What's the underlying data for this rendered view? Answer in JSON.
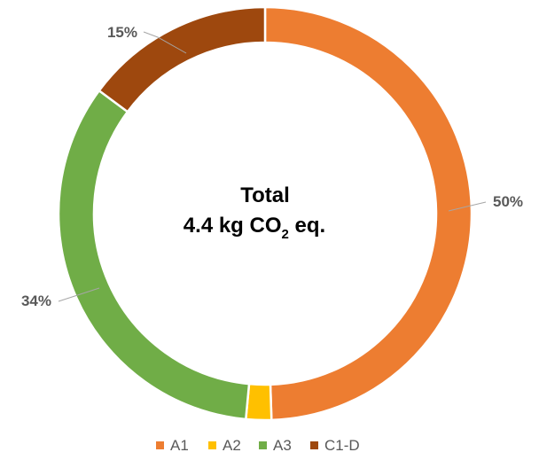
{
  "chart_data": {
    "type": "pie",
    "variant": "donut",
    "title": "",
    "center_label": {
      "line1": "Total",
      "line2_prefix": "4.4 kg CO",
      "line2_subscript": "2",
      "line2_suffix": " eq."
    },
    "categories": [
      "A1",
      "A2",
      "A3",
      "C1-D"
    ],
    "values": [
      50,
      2,
      34,
      15
    ],
    "data_labels": [
      "50%",
      "",
      "34%",
      "15%"
    ],
    "colors": [
      "#ED7D31",
      "#FFC000",
      "#70AD47",
      "#9E480E"
    ],
    "leader_line_color": "#A6A6A6",
    "legend": {
      "position": "bottom",
      "entries": [
        "A1",
        "A2",
        "A3",
        "C1-D"
      ]
    }
  }
}
